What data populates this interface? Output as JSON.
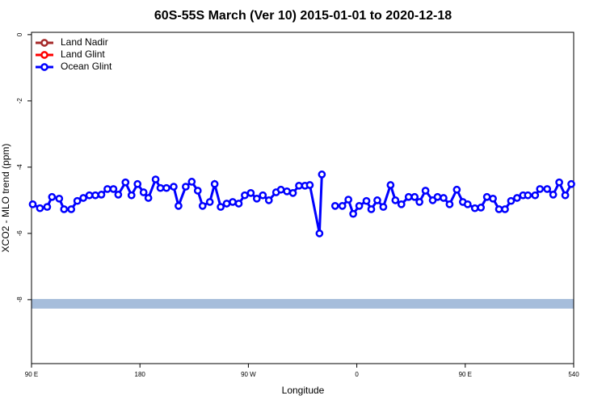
{
  "chart_data": {
    "type": "line",
    "title": "60S-55S March (Ver 10)   2015-01-01 to 2020-12-18",
    "x_label": "Longitude",
    "y_label": "XCO2 - MLO trend (ppm)",
    "xlim": [
      90,
      540
    ],
    "ylim": [
      -9.93,
      0.07
    ],
    "xticks": [
      {
        "value": 90,
        "label": "90 E"
      },
      180,
      {
        "value": 270,
        "label": "90 W"
      },
      {
        "value": 360,
        "label": "0"
      },
      {
        "value": 450,
        "label": "90 E"
      },
      540
    ],
    "yticks": [
      0,
      -2,
      -4,
      -6,
      -8
    ],
    "legend": "top-left",
    "band": {
      "y": [
        -7.98,
        -8.27
      ],
      "color": "#a6bddb"
    },
    "series": [
      {
        "name": "Land Nadir",
        "color": "#a52a2a",
        "x": [],
        "values": []
      },
      {
        "name": "Land Glint",
        "color": "#ff0000",
        "x": [],
        "values": []
      },
      {
        "name": "Ocean Glint",
        "color": "#0000ff",
        "x": [
          91,
          97,
          103,
          107,
          113,
          117,
          123,
          128,
          133,
          138,
          143,
          148,
          153,
          158,
          162,
          168,
          173,
          178,
          183,
          187,
          193,
          197,
          202,
          208,
          212,
          218,
          223,
          228,
          232,
          238,
          242,
          247,
          252,
          257,
          262,
          267,
          272,
          277,
          282,
          287,
          293,
          297,
          302,
          307,
          312,
          317,
          321,
          329,
          331,
          336,
          342,
          348,
          353,
          357,
          362,
          368,
          372,
          377,
          382,
          388,
          392,
          397,
          403,
          408,
          412,
          417,
          423,
          427,
          432,
          437,
          443,
          448,
          452,
          458,
          463,
          468,
          473,
          478,
          483,
          488,
          493,
          498,
          502,
          508,
          512,
          518,
          523,
          528,
          533,
          538
        ],
        "values": [
          -5.12,
          -5.24,
          -5.2,
          -4.9,
          -4.95,
          -5.27,
          -5.27,
          -5.02,
          -4.93,
          -4.85,
          -4.85,
          -4.83,
          -4.66,
          -4.66,
          -4.83,
          -4.46,
          -4.85,
          -4.51,
          -4.76,
          -4.93,
          -4.37,
          -4.63,
          -4.63,
          -4.59,
          -5.17,
          -4.59,
          -4.44,
          -4.71,
          -5.17,
          -5.05,
          -4.51,
          -5.2,
          -5.1,
          -5.05,
          -5.1,
          -4.85,
          -4.78,
          -4.95,
          -4.85,
          -5.0,
          -4.76,
          -4.68,
          -4.73,
          -4.78,
          -4.56,
          -4.56,
          -4.54,
          -6.0,
          -4.22,
          null,
          -5.17,
          -5.17,
          -4.98,
          -5.41,
          -5.17,
          -5.02,
          -5.27,
          -5.0,
          -5.2,
          -4.54,
          -5.0,
          -5.12,
          -4.9,
          -4.9,
          -5.05,
          -4.71,
          -5.0,
          -4.9,
          -4.93,
          -5.12,
          -4.68,
          -5.05,
          -5.12,
          -5.24,
          -5.22,
          -4.9,
          -4.95,
          -5.27,
          -5.27,
          -5.02,
          -4.93,
          -4.85,
          -4.85,
          -4.85,
          -4.66,
          -4.66,
          -4.83,
          -4.46,
          -4.85,
          -4.51
        ]
      }
    ]
  }
}
